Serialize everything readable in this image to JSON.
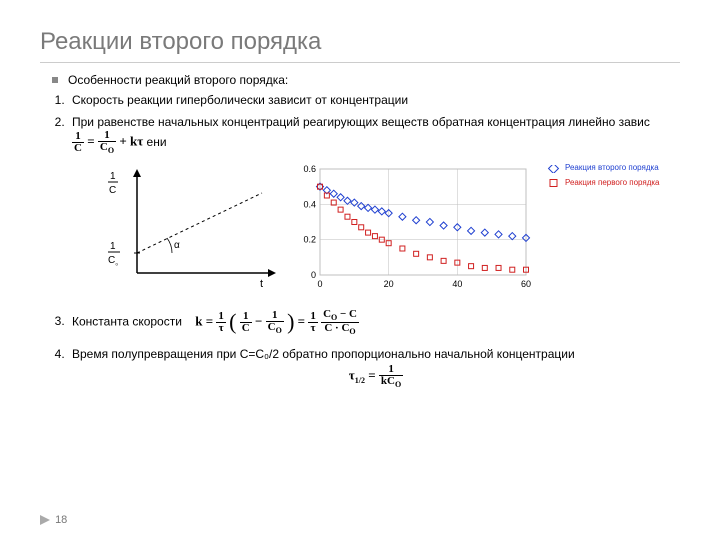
{
  "title": "Реакции второго порядка",
  "intro": "Особенности реакций второго порядка:",
  "points": {
    "p1": "Скорость реакции гиперболически зависит от концентрации",
    "p2a": "При равенстве начальных концентраций реагирующих веществ обратная концентрация линейно завис",
    "p2b": "ени",
    "p3": "Константа скорости",
    "p4": "Время полупревращения при С=С₀/2 обратно пропорционально начальной концентрации"
  },
  "eq1": {
    "lhs_n": "1",
    "lhs_d": "C",
    "rhs1_n": "1",
    "rhs1_d": "C",
    "rhs1_dsub": "O",
    "plus": "+ kτ"
  },
  "eq3": {
    "k": "k =",
    "f1_n": "1",
    "f1_d": "τ",
    "f2_n": "1",
    "f2_d": "C",
    "f3_n": "1",
    "f3_d": "C",
    "f3_dsub": "O",
    "eq": "=",
    "f4_n": "1",
    "f4_d": "τ",
    "f5_top_a": "C",
    "f5_top_sub": "O",
    "f5_top_b": " − C",
    "f5_bot_a": "C · C",
    "f5_bot_sub": "O"
  },
  "eq4": {
    "lhs": "τ",
    "lhs_sub": "1/2",
    "rhs_n": "1",
    "rhs_d": "kC",
    "rhs_dsub": "O"
  },
  "chart1": {
    "ylabel_n": "1",
    "ylabel_d": "C",
    "yint_n": "1",
    "yint_d": "C",
    "yint_sub": "₀",
    "xlabel": "t",
    "angle": "α",
    "axis_color": "#000",
    "line_dash": "3,3"
  },
  "chart2": {
    "type": "line",
    "xlim": [
      0,
      60
    ],
    "ylim": [
      0,
      0.6
    ],
    "xticks": [
      0,
      20,
      40,
      60
    ],
    "yticks": [
      0,
      0.2,
      0.4,
      0.6
    ],
    "background": "#ffffff",
    "grid_color": "#bfbfbf",
    "series": [
      {
        "name": "second",
        "color": "#2040d0",
        "marker": "diamond",
        "x": [
          0,
          2,
          4,
          6,
          8,
          10,
          12,
          14,
          16,
          18,
          20,
          24,
          28,
          32,
          36,
          40,
          44,
          48,
          52,
          56,
          60
        ],
        "y": [
          0.5,
          0.48,
          0.46,
          0.44,
          0.42,
          0.41,
          0.39,
          0.38,
          0.37,
          0.36,
          0.35,
          0.33,
          0.31,
          0.3,
          0.28,
          0.27,
          0.25,
          0.24,
          0.23,
          0.22,
          0.21
        ]
      },
      {
        "name": "first",
        "color": "#d02020",
        "marker": "square",
        "x": [
          0,
          2,
          4,
          6,
          8,
          10,
          12,
          14,
          16,
          18,
          20,
          24,
          28,
          32,
          36,
          40,
          44,
          48,
          52,
          56,
          60
        ],
        "y": [
          0.5,
          0.45,
          0.41,
          0.37,
          0.33,
          0.3,
          0.27,
          0.24,
          0.22,
          0.2,
          0.18,
          0.15,
          0.12,
          0.1,
          0.08,
          0.07,
          0.05,
          0.04,
          0.04,
          0.03,
          0.03
        ]
      }
    ],
    "legend": {
      "second": {
        "label": "Реакция второго порядка",
        "color": "#2040d0"
      },
      "first": {
        "label": "Реакция первого порядка",
        "color": "#d02020"
      }
    },
    "tick_fontsize": 9
  },
  "page_number": "18"
}
